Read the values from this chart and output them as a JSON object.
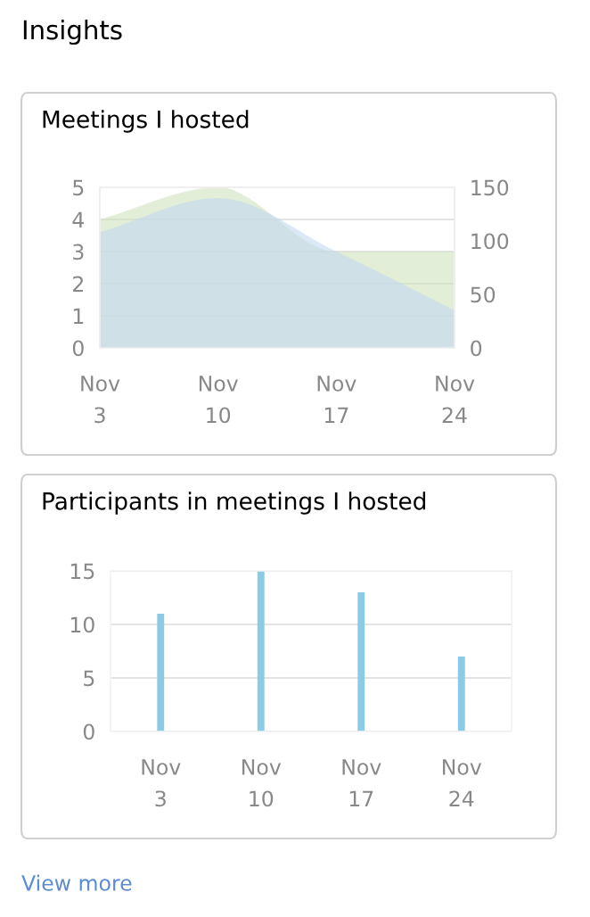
{
  "chart_data": [
    {
      "type": "other",
      "title": "Insights"
    },
    {
      "type": "area",
      "title": "Meetings I hosted",
      "categories": [
        "Nov\n3",
        "Nov\n10",
        "Nov\n17",
        "Nov\n24"
      ],
      "series": [
        {
          "color": "#cfe3bd",
          "values": [
            4,
            5,
            3,
            3
          ]
        },
        {
          "color": "#c3d8f0",
          "values": [
            108,
            140,
            90,
            35
          ],
          "axis": "y2"
        }
      ],
      "ylim": [
        0,
        5
      ],
      "yticks": [
        0,
        1,
        2,
        3,
        4,
        5
      ],
      "y2lim": [
        0,
        150
      ],
      "y2ticks": [
        0,
        50,
        100,
        150
      ],
      "grid": "y"
    },
    {
      "type": "bar",
      "title": "Participants in meetings I hosted",
      "categories": [
        "Nov\n3",
        "Nov\n10",
        "Nov\n17",
        "Nov\n24"
      ],
      "values": [
        11,
        15,
        13,
        7
      ],
      "color": "#8ccbe4",
      "ylim": [
        0,
        15
      ],
      "yticks": [
        0,
        5,
        10,
        15
      ],
      "grid": "y",
      "annotations": [
        "View more"
      ]
    }
  ]
}
